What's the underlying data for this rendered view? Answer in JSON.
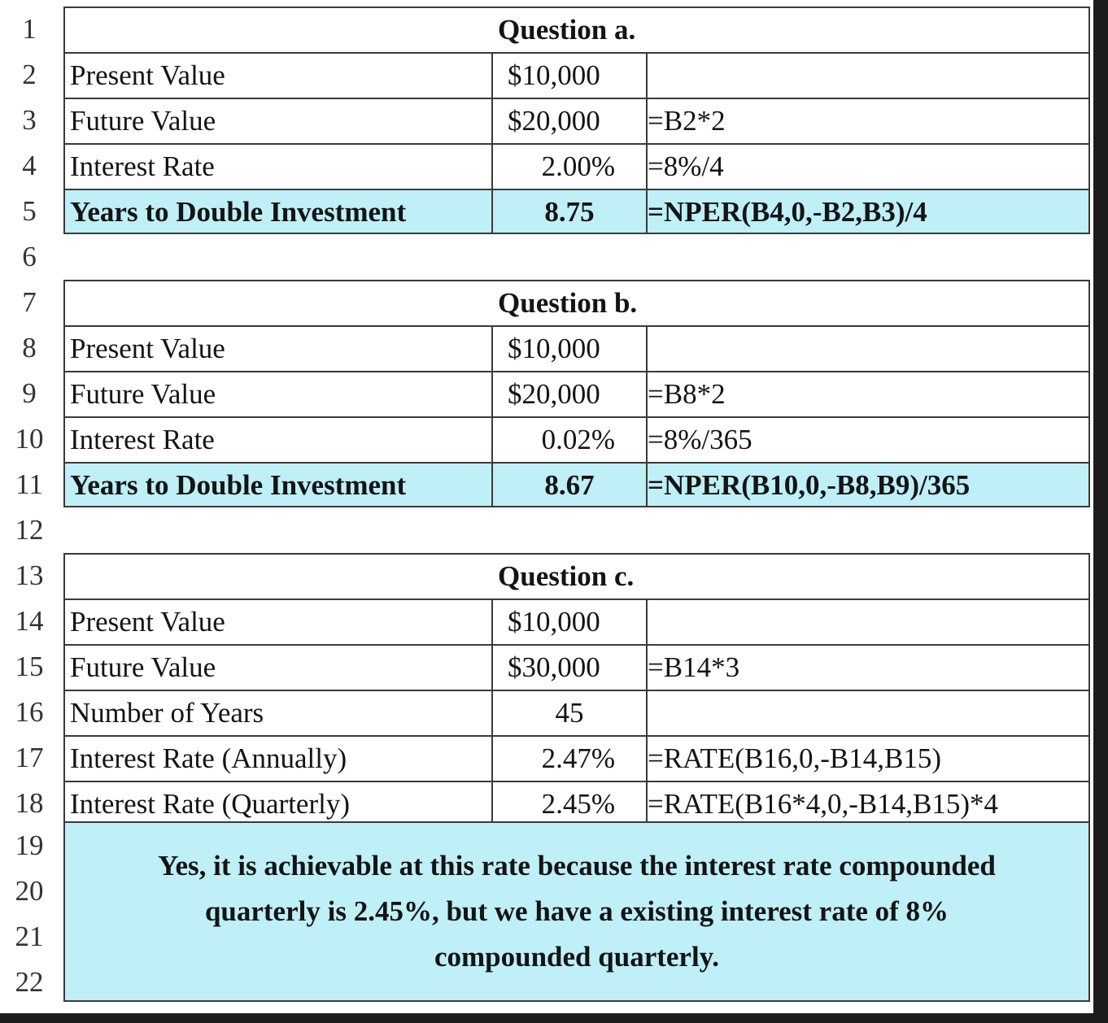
{
  "sections": [
    {
      "title": "Question a.",
      "rows": [
        {
          "num": "2",
          "label": "Present Value",
          "value": "$10,000",
          "formula": ""
        },
        {
          "num": "3",
          "label": "Future Value",
          "value": "$20,000",
          "formula": "=B2*2"
        },
        {
          "num": "4",
          "label": "Interest Rate",
          "value": "2.00%",
          "formula": "=8%/4"
        },
        {
          "num": "5",
          "label": "Years to Double Investment",
          "value": "8.75",
          "formula": "=NPER(B4,0,-B2,B3)/4"
        }
      ]
    },
    {
      "title": "Question b.",
      "rows": [
        {
          "num": "8",
          "label": "Present Value",
          "value": "$10,000",
          "formula": ""
        },
        {
          "num": "9",
          "label": "Future Value",
          "value": "$20,000",
          "formula": "=B8*2"
        },
        {
          "num": "10",
          "label": "Interest Rate",
          "value": "0.02%",
          "formula": "=8%/365"
        },
        {
          "num": "11",
          "label": "Years to Double Investment",
          "value": "8.67",
          "formula": "=NPER(B10,0,-B8,B9)/365"
        }
      ]
    },
    {
      "title": "Question c.",
      "rows": [
        {
          "num": "14",
          "label": "Present Value",
          "value": "$10,000",
          "formula": ""
        },
        {
          "num": "15",
          "label": "Future Value",
          "value": "$30,000",
          "formula": "=B14*3"
        },
        {
          "num": "16",
          "label": "Number of Years",
          "value": "45",
          "formula": ""
        },
        {
          "num": "17",
          "label": "Interest Rate (Annually)",
          "value": "2.47%",
          "formula": "=RATE(B16,0,-B14,B15)"
        },
        {
          "num": "18",
          "label": "Interest Rate (Quarterly)",
          "value": "2.45%",
          "formula": "=RATE(B16*4,0,-B14,B15)*4"
        }
      ]
    }
  ],
  "row_numbers": {
    "r1": "1",
    "r6": "6",
    "r7": "7",
    "r12": "12",
    "r13": "13",
    "r19": "19",
    "r20": "20",
    "r21": "21",
    "r22": "22"
  },
  "conclusion": {
    "line1": "Yes, it is achievable at this rate because the interest rate compounded",
    "line2": "quarterly is 2.45%, but we have a existing interest rate of 8%",
    "line3": "compounded quarterly."
  },
  "colors": {
    "highlight": "#bfeff7",
    "border": "#3a3a3a",
    "background": "#1c1c1c"
  }
}
